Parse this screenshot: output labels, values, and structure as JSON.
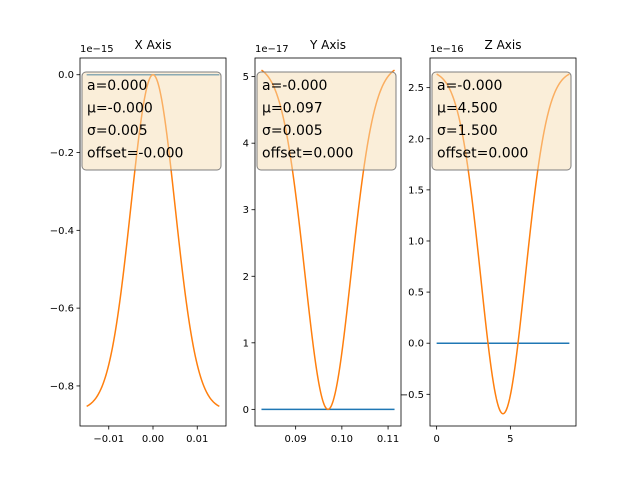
{
  "colors": {
    "series_flat": "#1f77b4",
    "series_fit": "#ff7f0e",
    "box_fill": "#f5deb3",
    "box_edge": "#7f7f7f"
  },
  "chart_data": [
    {
      "type": "line",
      "title": "X Axis",
      "offset_label": "1e−15",
      "xlim": [
        -0.0165,
        0.0165
      ],
      "ylim": [
        -0.903,
        0.043
      ],
      "xticks": [
        -0.01,
        0.0,
        0.01
      ],
      "xtick_labels": [
        "−0.01",
        "0.00",
        "0.01"
      ],
      "yticks": [
        0.0,
        -0.2,
        -0.4,
        -0.6,
        -0.8
      ],
      "ytick_labels": [
        "0.0",
        "−0.2",
        "−0.4",
        "−0.6",
        "−0.8"
      ],
      "series": [
        {
          "values": {
            "kind": "flat",
            "x_range": [
              -0.015,
              0.015
            ],
            "y": 0.0
          }
        },
        {
          "values": {
            "kind": "gauss",
            "x_range": [
              -0.015,
              0.015
            ],
            "mu": 0.0,
            "sigma": 0.005,
            "peak": 0.0,
            "floor": -0.862
          }
        }
      ],
      "stats": [
        "a=0.000",
        "μ=-0.000",
        "σ=0.005",
        "offset=-0.000"
      ]
    },
    {
      "type": "line",
      "title": "Y Axis",
      "offset_label": "1e−17",
      "xlim": [
        0.0812,
        0.1128
      ],
      "ylim": [
        -0.25,
        5.28
      ],
      "xticks": [
        0.09,
        0.1,
        0.11
      ],
      "xtick_labels": [
        "0.09",
        "0.10",
        "0.11"
      ],
      "yticks": [
        0,
        1,
        2,
        3,
        4,
        5
      ],
      "ytick_labels": [
        "0",
        "1",
        "2",
        "3",
        "4",
        "5"
      ],
      "series": [
        {
          "values": {
            "kind": "flat",
            "x_range": [
              0.0826,
              0.1114
            ],
            "y": 0.0
          }
        },
        {
          "values": {
            "kind": "gauss",
            "x_range": [
              0.0826,
              0.1114
            ],
            "mu": 0.097,
            "sigma": 0.005,
            "peak": 0.0,
            "floor": 5.18
          }
        }
      ],
      "stats": [
        "a=-0.000",
        "μ=0.097",
        "σ=0.005",
        "offset=0.000"
      ]
    },
    {
      "type": "line",
      "title": "Z Axis",
      "offset_label": "1e−16",
      "xlim": [
        -0.45,
        9.45
      ],
      "ylim": [
        -0.81,
        2.79
      ],
      "xticks": [
        0,
        5
      ],
      "xtick_labels": [
        "0",
        "5"
      ],
      "yticks": [
        -0.5,
        0.0,
        0.5,
        1.0,
        1.5,
        2.0,
        2.5
      ],
      "ytick_labels": [
        "−0.5",
        "0.0",
        "0.5",
        "1.0",
        "1.5",
        "2.0",
        "2.5"
      ],
      "series": [
        {
          "values": {
            "kind": "flat",
            "x_range": [
              0,
              9
            ],
            "y": 0.0
          }
        },
        {
          "values": {
            "kind": "gauss",
            "x_range": [
              0,
              9
            ],
            "mu": 4.5,
            "sigma": 1.5,
            "peak": -0.69,
            "floor": 2.67
          }
        }
      ],
      "stats": [
        "a=-0.000",
        "μ=4.500",
        "σ=1.500",
        "offset=0.000"
      ]
    }
  ]
}
